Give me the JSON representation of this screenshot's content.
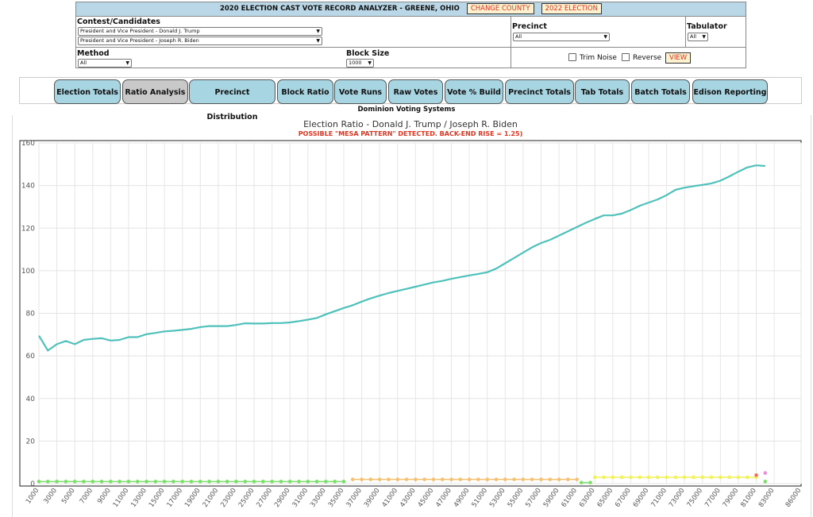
{
  "header": {
    "title": "2020 ELECTION CAST VOTE RECORD ANALYZER - GREENE, OHIO",
    "change_county": "CHANGE COUNTY",
    "election_btn": "2022 ELECTION"
  },
  "filters": {
    "contest_label": "Contest/Candidates",
    "candidate1": "President and Vice President - Donald J. Trump",
    "candidate2": "President and Vice President - Joseph R. Biden",
    "precinct_label": "Precinct",
    "precinct_value": "All",
    "tabulator_label": "Tabulator",
    "tabulator_value": "All",
    "method_label": "Method",
    "method_value": "All",
    "block_label": "Block Size",
    "block_value": "1000",
    "trim_noise": "Trim Noise",
    "reverse": "Reverse",
    "view": "VIEW"
  },
  "tabs": [
    "Election Totals",
    "Ratio Analysis",
    "Precinct Distribution",
    "Block Ratio",
    "Vote Runs",
    "Raw Votes",
    "Vote % Build",
    "Precinct Totals",
    "Tab Totals",
    "Batch Totals",
    "Edison Reporting"
  ],
  "active_tab": "Ratio Analysis",
  "system_label": "Dominion Voting Systems",
  "chart_data": {
    "type": "line",
    "title": "Election Ratio - Donald J. Trump / Joseph R. Biden",
    "annotation": "POSSIBLE \"MESA PATTERN\" DETECTED. BACK-END RISE = 1.25)",
    "ylim": [
      0,
      160
    ],
    "yticks": [
      0,
      20,
      40,
      60,
      80,
      100,
      120,
      140,
      160
    ],
    "xticks": [
      1000,
      3000,
      5000,
      7000,
      9000,
      11000,
      13000,
      15000,
      17000,
      19000,
      21000,
      23000,
      25000,
      27000,
      29000,
      31000,
      33000,
      35000,
      37000,
      39000,
      41000,
      43000,
      45000,
      47000,
      49000,
      51000,
      53000,
      55000,
      57000,
      59000,
      61000,
      63000,
      65000,
      67000,
      69000,
      71000,
      73000,
      75000,
      77000,
      79000,
      81000,
      83000,
      86000
    ],
    "line_color": "#4fc1bb",
    "ratio": [
      [
        1000,
        69.5
      ],
      [
        2000,
        62.5
      ],
      [
        3000,
        65.5
      ],
      [
        4000,
        67
      ],
      [
        5000,
        65.5
      ],
      [
        6000,
        67.5
      ],
      [
        7000,
        68
      ],
      [
        8000,
        68.3
      ],
      [
        9000,
        67.2
      ],
      [
        10000,
        67.5
      ],
      [
        11000,
        68.8
      ],
      [
        12000,
        68.8
      ],
      [
        13000,
        70.2
      ],
      [
        14000,
        70.8
      ],
      [
        15000,
        71.5
      ],
      [
        16000,
        71.8
      ],
      [
        17000,
        72.2
      ],
      [
        18000,
        72.7
      ],
      [
        19000,
        73.5
      ],
      [
        20000,
        74
      ],
      [
        21000,
        74
      ],
      [
        22000,
        74
      ],
      [
        23000,
        74.5
      ],
      [
        24000,
        75.3
      ],
      [
        25000,
        75.2
      ],
      [
        26000,
        75.2
      ],
      [
        27000,
        75.4
      ],
      [
        28000,
        75.4
      ],
      [
        29000,
        75.7
      ],
      [
        30000,
        76.3
      ],
      [
        31000,
        77
      ],
      [
        32000,
        77.8
      ],
      [
        33000,
        79.5
      ],
      [
        34000,
        81
      ],
      [
        35000,
        82.5
      ],
      [
        36000,
        83.8
      ],
      [
        37000,
        85.5
      ],
      [
        38000,
        87
      ],
      [
        39000,
        88.3
      ],
      [
        40000,
        89.5
      ],
      [
        41000,
        90.5
      ],
      [
        42000,
        91.5
      ],
      [
        43000,
        92.5
      ],
      [
        44000,
        93.5
      ],
      [
        45000,
        94.5
      ],
      [
        46000,
        95.2
      ],
      [
        47000,
        96.2
      ],
      [
        48000,
        97
      ],
      [
        49000,
        97.8
      ],
      [
        50000,
        98.5
      ],
      [
        51000,
        99.3
      ],
      [
        52000,
        101
      ],
      [
        53000,
        103.5
      ],
      [
        54000,
        106
      ],
      [
        55000,
        108.5
      ],
      [
        56000,
        111
      ],
      [
        57000,
        113
      ],
      [
        58000,
        114.5
      ],
      [
        59000,
        116.5
      ],
      [
        60000,
        118.5
      ],
      [
        61000,
        120.5
      ],
      [
        62000,
        122.5
      ],
      [
        63000,
        124.3
      ],
      [
        64000,
        126
      ],
      [
        65000,
        126
      ],
      [
        66000,
        126.8
      ],
      [
        67000,
        128.5
      ],
      [
        68000,
        130.5
      ],
      [
        69000,
        132
      ],
      [
        70000,
        133.5
      ],
      [
        71000,
        135.5
      ],
      [
        72000,
        138
      ],
      [
        73000,
        139
      ],
      [
        74000,
        139.7
      ],
      [
        75000,
        140.3
      ],
      [
        76000,
        141
      ],
      [
        77000,
        142.3
      ],
      [
        78000,
        144.3
      ],
      [
        79000,
        146.5
      ],
      [
        80000,
        148.5
      ],
      [
        81000,
        149.5
      ],
      [
        82000,
        149.2
      ]
    ],
    "markers": [
      {
        "name": "green",
        "color": "#7be06a",
        "y": 1,
        "x_from": 1000,
        "x_to": 35000
      },
      {
        "name": "orange",
        "color": "#f5c071",
        "y": 2,
        "x_from": 36000,
        "x_to": 61000
      },
      {
        "name": "green-break",
        "color": "#7be06a",
        "y": 0.5,
        "x_from": 61500,
        "x_to": 62500
      },
      {
        "name": "yellow",
        "color": "#f2f25a",
        "y": 3,
        "x_from": 63000,
        "x_to": 81000
      },
      {
        "name": "green-end",
        "color": "#7be06a",
        "y": 1,
        "x_from": 82000,
        "x_to": 82000
      },
      {
        "name": "pink",
        "color": "#f08bd6",
        "y": 5,
        "x_from": 82000,
        "x_to": 82000
      },
      {
        "name": "red",
        "color": "#f06a6a",
        "y": 4,
        "x_from": 81000,
        "x_to": 81000
      }
    ]
  }
}
